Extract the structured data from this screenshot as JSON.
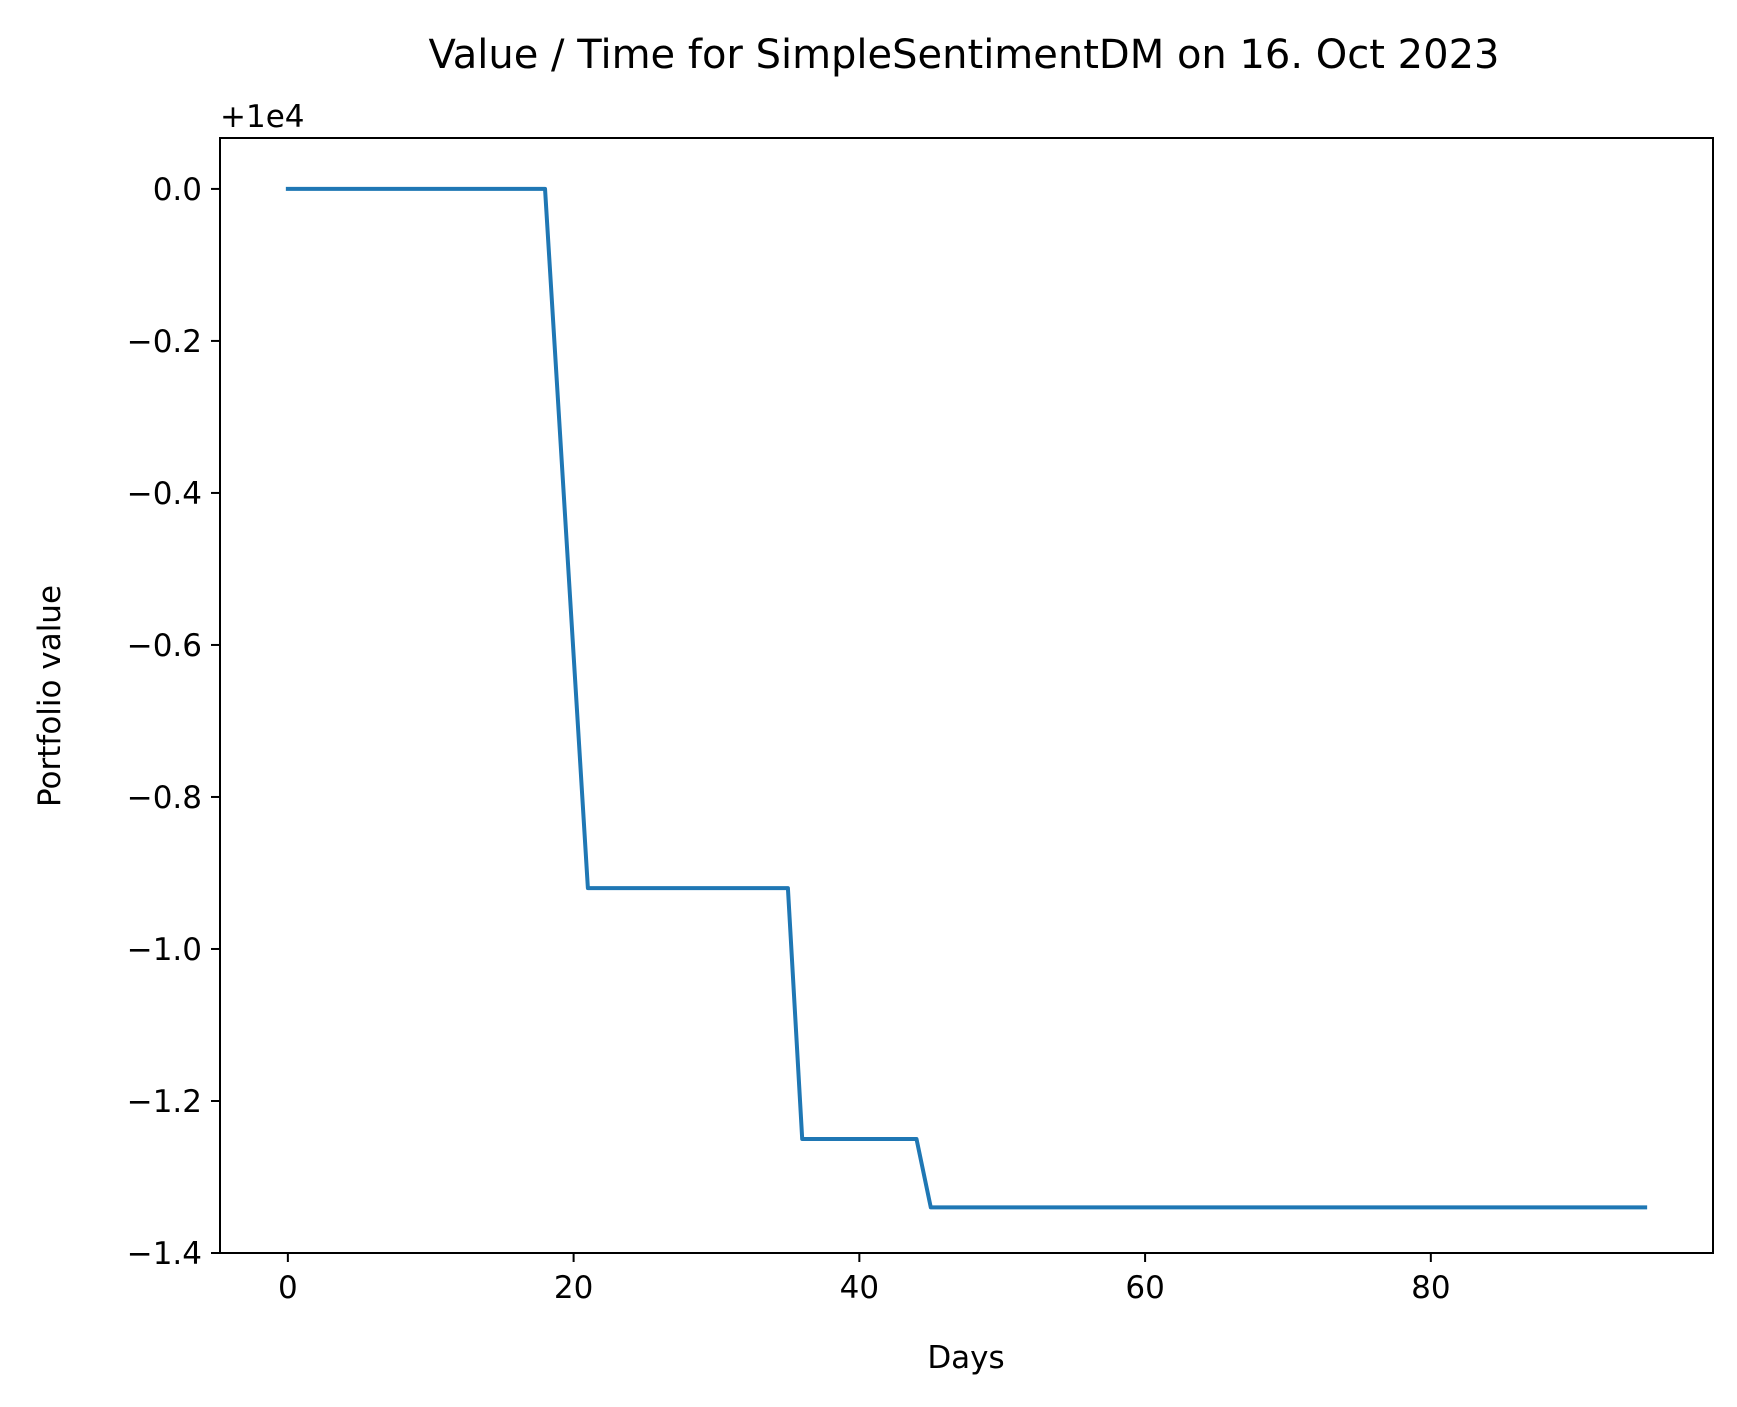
{
  "chart_data": {
    "type": "line",
    "title": "Value / Time for SimpleSentimentDM on 16. Oct 2023",
    "xlabel": "Days",
    "ylabel": "Portfolio value",
    "y_offset_label": "+1e4",
    "xlim": [
      -4.75,
      99.75
    ],
    "ylim": [
      -1.4,
      0.067
    ],
    "x_ticks": [
      0,
      20,
      40,
      60,
      80
    ],
    "x_tick_labels": [
      "0",
      "20",
      "40",
      "60",
      "80"
    ],
    "y_ticks": [
      0.0,
      -0.2,
      -0.4,
      -0.6,
      -0.8,
      -1.0,
      -1.2,
      -1.4
    ],
    "y_tick_labels": [
      "0.0",
      "−0.2",
      "−0.4",
      "−0.6",
      "−0.8",
      "−1.0",
      "−1.2",
      "−1.4"
    ],
    "grid": false,
    "series": [
      {
        "color": "#1f77b4",
        "x": [
          0,
          18,
          21,
          35,
          36,
          44,
          45,
          95
        ],
        "y": [
          0.0,
          0.0,
          -0.92,
          -0.92,
          -1.25,
          -1.25,
          -1.34,
          -1.34
        ]
      }
    ]
  }
}
